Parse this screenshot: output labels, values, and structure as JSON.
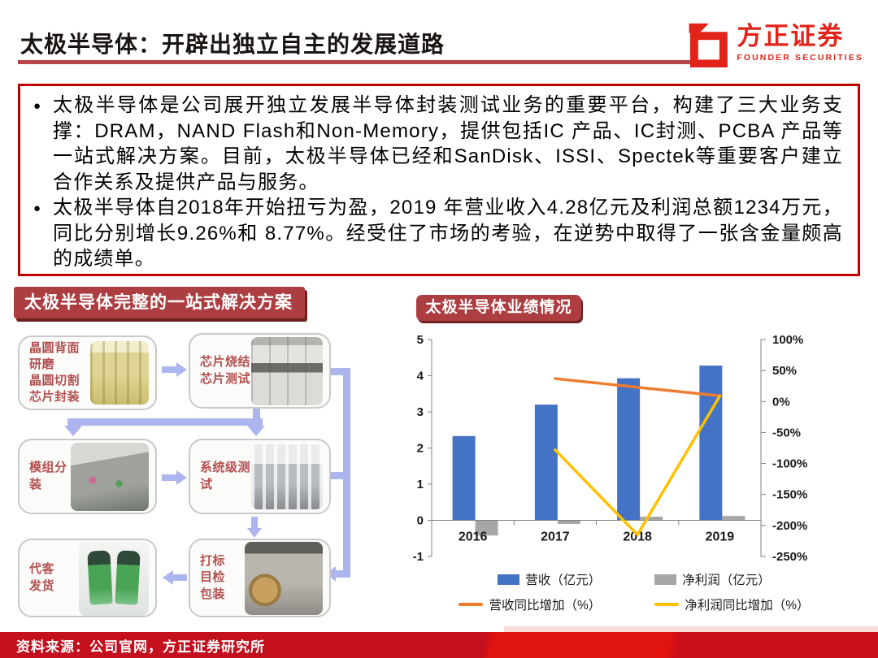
{
  "header": {
    "title": "太极半导体：开辟出独立自主的发展道路",
    "logo_name": "方正证券",
    "logo_subtitle": "FOUNDER SECURITIES"
  },
  "summary": {
    "bullet_marker": "●",
    "bullet1": "太极半导体是公司展开独立发展半导体封装测试业务的重要平台，构建了三大业务支撑：DRAM，NAND Flash和Non-Memory，提供包括IC 产品、IC封测、PCBA 产品等一站式解决方案。目前，太极半导体已经和SanDisk、ISSI、Spectek等重要客户建立合作关系及提供产品与服务。",
    "bullet2": "太极半导体自2018年开始扭亏为盈，2019 年营业收入4.28亿元及利润总额1234万元，同比分别增长9.26%和 8.77%。经受住了市场的考验，在逆势中取得了一张含金量颇高的成绩单。"
  },
  "process_panel": {
    "title": "太极半导体完整的一站式解决方案",
    "steps": [
      {
        "label": "晶圆背面\n研磨\n晶圆切割\n芯片封装",
        "photo": "wafer-fab-photo"
      },
      {
        "label": "芯片烧结\n芯片测试",
        "photo": "chip-sinter-test-photo"
      },
      {
        "label": "模组分装",
        "photo": "module-assembly-photo"
      },
      {
        "label": "系统级测\n试",
        "photo": "system-test-photo"
      },
      {
        "label": "代客\n发货",
        "photo": "delivery-trucks-photo"
      },
      {
        "label": "打标\n目检\n包装",
        "photo": "marking-packing-photo"
      }
    ]
  },
  "chart_panel": {
    "title": "太极半导体业绩情况"
  },
  "chart_data": {
    "type": "bar+line combo",
    "title": "太极半导体业绩情况",
    "categories": [
      "2016",
      "2017",
      "2018",
      "2019"
    ],
    "series": [
      {
        "name": "营收（亿元）",
        "type": "bar",
        "axis": "left",
        "color": "#4472C4",
        "values": [
          2.33,
          3.2,
          3.93,
          4.28
        ]
      },
      {
        "name": "净利润（亿元）",
        "type": "bar",
        "axis": "left",
        "color": "#A6A6A6",
        "values": [
          -0.42,
          -0.1,
          0.1,
          0.12
        ]
      },
      {
        "name": "营收同比增加（%）",
        "type": "line",
        "axis": "right",
        "color": "#ED7D31",
        "values": [
          null,
          37,
          23,
          9.26
        ]
      },
      {
        "name": "净利润同比增加（%）",
        "type": "line",
        "axis": "right",
        "color": "#FFC000",
        "values": [
          null,
          -78,
          -215,
          8.77
        ]
      }
    ],
    "left_axis": {
      "min": -1,
      "max": 5,
      "ticks": [
        5,
        4,
        3,
        2,
        1,
        0,
        -1
      ]
    },
    "right_axis": {
      "min": -250,
      "max": 100,
      "ticks": [
        "100%",
        "50%",
        "0%",
        "-50%",
        "-100%",
        "-150%",
        "-200%",
        "-250%"
      ]
    },
    "legend_position": "bottom",
    "grid": false
  },
  "footer": {
    "source": "资料来源：公司官网，方正证券研究所"
  }
}
